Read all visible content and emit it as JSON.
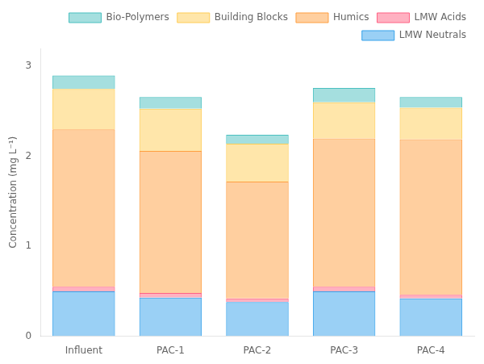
{
  "chart_data": {
    "type": "bar",
    "categories": [
      "Influent",
      "PAC-1",
      "PAC-2",
      "PAC-3",
      "PAC-4"
    ],
    "series": [
      {
        "name": "LMW Neutrals",
        "values": [
          0.5,
          0.43,
          0.38,
          0.5,
          0.42
        ]
      },
      {
        "name": "LMW Acids",
        "values": [
          0.05,
          0.05,
          0.04,
          0.05,
          0.04
        ]
      },
      {
        "name": "Humics",
        "values": [
          1.75,
          1.58,
          1.3,
          1.65,
          1.73
        ]
      },
      {
        "name": "Building Blocks",
        "values": [
          0.45,
          0.47,
          0.42,
          0.4,
          0.35
        ]
      },
      {
        "name": "Bio-Polymers",
        "values": [
          0.15,
          0.13,
          0.1,
          0.16,
          0.12
        ]
      }
    ],
    "ylabel": "Concentration (mg L⁻¹)",
    "ylim": [
      0,
      3.2
    ],
    "yticks": [
      0,
      1,
      2,
      3
    ],
    "stacked": true,
    "grid": false,
    "legend": "upper right"
  }
}
